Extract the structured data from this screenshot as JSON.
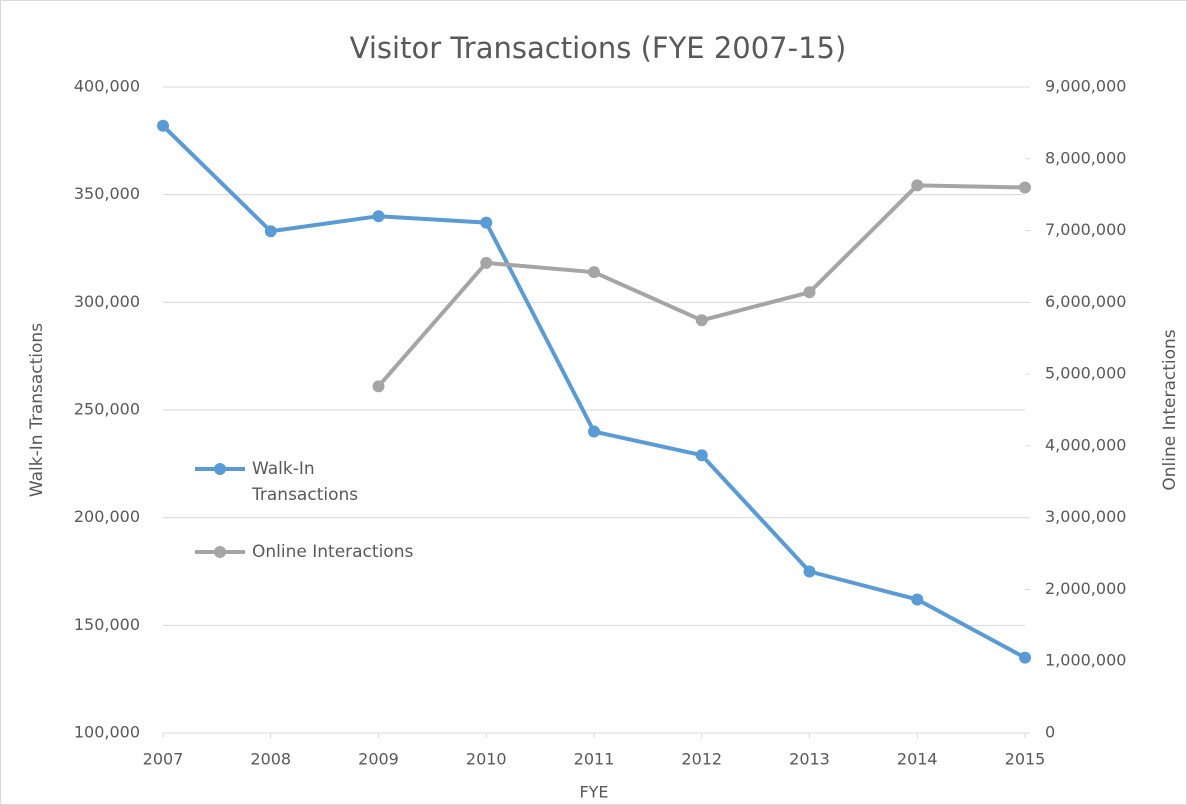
{
  "chart_data": {
    "type": "line",
    "title": "Visitor Transactions (FYE 2007-15)",
    "x_label": "FYE",
    "y_label": "Walk-In Transactions",
    "y2_label": "Online Interactions",
    "x": [
      2007,
      2008,
      2009,
      2010,
      2011,
      2012,
      2013,
      2014,
      2015
    ],
    "xlim": [
      2007,
      2015
    ],
    "xticks": [
      2007,
      2008,
      2009,
      2010,
      2011,
      2012,
      2013,
      2014,
      2015
    ],
    "series": [
      {
        "name": "Walk-In Transactions",
        "color": "#5b9bd5",
        "values": [
          382000,
          333000,
          340000,
          337000,
          240000,
          229000,
          175000,
          162000,
          135000
        ]
      },
      {
        "name": "Online Interactions",
        "color": "#a5a5a5",
        "axis": "y2",
        "values": [
          null,
          null,
          4830000,
          6550000,
          6420000,
          5750000,
          6140000,
          7630000,
          7600000
        ]
      }
    ],
    "ylim": [
      100000,
      400000
    ],
    "yticks": [
      {
        "value": 100000,
        "label": "100,000"
      },
      {
        "value": 150000,
        "label": "150,000"
      },
      {
        "value": 200000,
        "label": "200,000"
      },
      {
        "value": 250000,
        "label": "250,000"
      },
      {
        "value": 300000,
        "label": "300,000"
      },
      {
        "value": 350000,
        "label": "350,000"
      },
      {
        "value": 400000,
        "label": "400,000"
      }
    ],
    "y2lim": [
      0,
      9000000
    ],
    "y2ticks": [
      0,
      {
        "value": 1000000,
        "label": "1,000,000"
      },
      {
        "value": 2000000,
        "label": "2,000,000"
      },
      {
        "value": 3000000,
        "label": "3,000,000"
      },
      {
        "value": 4000000,
        "label": "4,000,000"
      },
      {
        "value": 5000000,
        "label": "5,000,000"
      },
      {
        "value": 6000000,
        "label": "6,000,000"
      },
      {
        "value": 7000000,
        "label": "7,000,000"
      },
      {
        "value": 8000000,
        "label": "8,000,000"
      },
      {
        "value": 9000000,
        "label": "9,000,000"
      }
    ],
    "grid": true,
    "legend": "center left"
  }
}
